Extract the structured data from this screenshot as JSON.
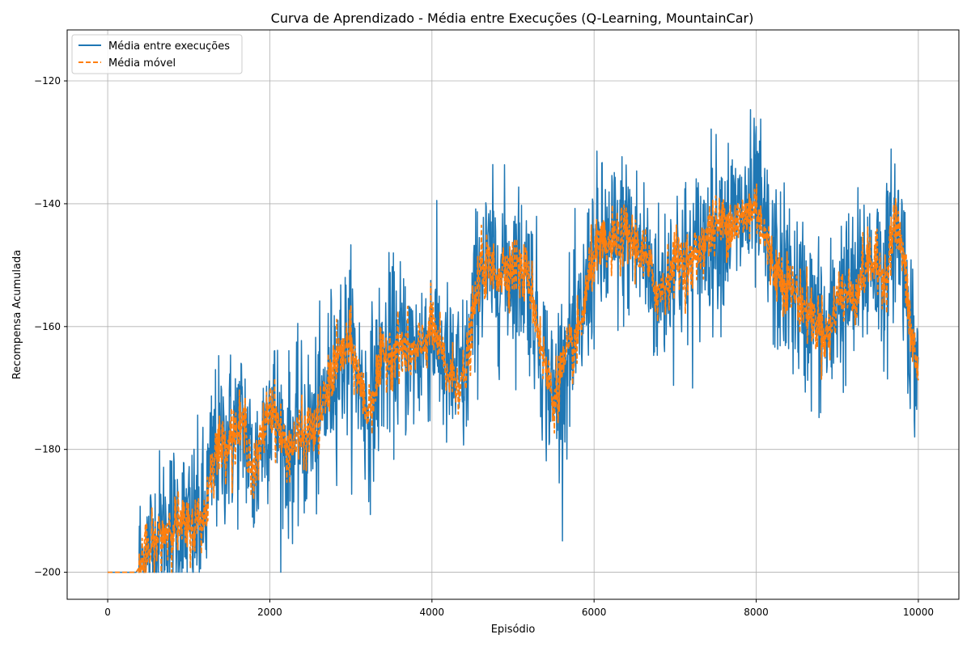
{
  "chart_data": {
    "type": "line",
    "title": "Curva de Aprendizado - Média entre Execuções (Q-Learning, MountainCar)",
    "xlabel": "Episódio",
    "ylabel": "Recompensa Acumulada",
    "xlim": [
      -500,
      10500
    ],
    "ylim": [
      -204.4,
      -111.7
    ],
    "x_ticks": [
      0,
      2000,
      4000,
      6000,
      8000,
      10000
    ],
    "x_tick_labels": [
      "0",
      "2000",
      "4000",
      "6000",
      "8000",
      "10000"
    ],
    "y_ticks": [
      -200,
      -180,
      -160,
      -140,
      -120
    ],
    "y_tick_labels": [
      "−200",
      "−180",
      "−160",
      "−140",
      "−120"
    ],
    "grid": true,
    "legend_position": "top-left",
    "series": [
      {
        "name": "Média entre execuções",
        "color": "#1f77b4",
        "style": "solid",
        "trend_x": [
          0,
          350,
          400,
          600,
          800,
          1000,
          1200,
          1300,
          1500,
          1700,
          1800,
          2000,
          2200,
          2400,
          2600,
          2800,
          3000,
          3200,
          3400,
          3600,
          3800,
          4000,
          4200,
          4400,
          4600,
          4800,
          5000,
          5200,
          5400,
          5500,
          5600,
          5800,
          6000,
          6200,
          6400,
          6600,
          6800,
          7000,
          7200,
          7400,
          7600,
          7800,
          8000,
          8200,
          8400,
          8600,
          8800,
          8900,
          9000,
          9200,
          9400,
          9600,
          9700,
          9800,
          9900,
          10000
        ],
        "trend_y": [
          -200,
          -200,
          -199,
          -195,
          -192,
          -193,
          -191,
          -181,
          -178,
          -176,
          -185,
          -172,
          -180,
          -178,
          -176,
          -166,
          -163,
          -174,
          -165,
          -163,
          -165,
          -160,
          -168,
          -169,
          -150,
          -151,
          -150,
          -152,
          -167,
          -172,
          -167,
          -162,
          -148,
          -147,
          -145,
          -148,
          -155,
          -149,
          -150,
          -145,
          -143,
          -143,
          -140,
          -150,
          -153,
          -157,
          -160,
          -162,
          -155,
          -155,
          -149,
          -152,
          -143,
          -147,
          -160,
          -168
        ],
        "noise_sd": 7
      },
      {
        "name": "Média móvel",
        "color": "#ff7f0e",
        "style": "dashed",
        "trend_x": [
          0,
          350,
          400,
          600,
          800,
          1000,
          1200,
          1300,
          1500,
          1700,
          1800,
          2000,
          2200,
          2400,
          2600,
          2800,
          3000,
          3200,
          3400,
          3600,
          3800,
          4000,
          4200,
          4400,
          4600,
          4800,
          5000,
          5200,
          5400,
          5500,
          5600,
          5800,
          6000,
          6200,
          6400,
          6600,
          6800,
          7000,
          7200,
          7400,
          7600,
          7800,
          8000,
          8200,
          8400,
          8600,
          8800,
          8900,
          9000,
          9200,
          9400,
          9600,
          9700,
          9800,
          9900,
          10000
        ],
        "trend_y": [
          -200,
          -200,
          -199,
          -195,
          -192,
          -193,
          -191,
          -181,
          -178,
          -176,
          -185,
          -172,
          -180,
          -178,
          -176,
          -166,
          -163,
          -174,
          -165,
          -163,
          -165,
          -160,
          -168,
          -169,
          -150,
          -151,
          -150,
          -152,
          -167,
          -172,
          -167,
          -162,
          -148,
          -147,
          -145,
          -148,
          -155,
          -149,
          -150,
          -145,
          -143,
          -143,
          -140,
          -150,
          -153,
          -157,
          -160,
          -162,
          -155,
          -155,
          -149,
          -152,
          -143,
          -147,
          -160,
          -168
        ],
        "noise_sd": 2.5
      }
    ]
  }
}
